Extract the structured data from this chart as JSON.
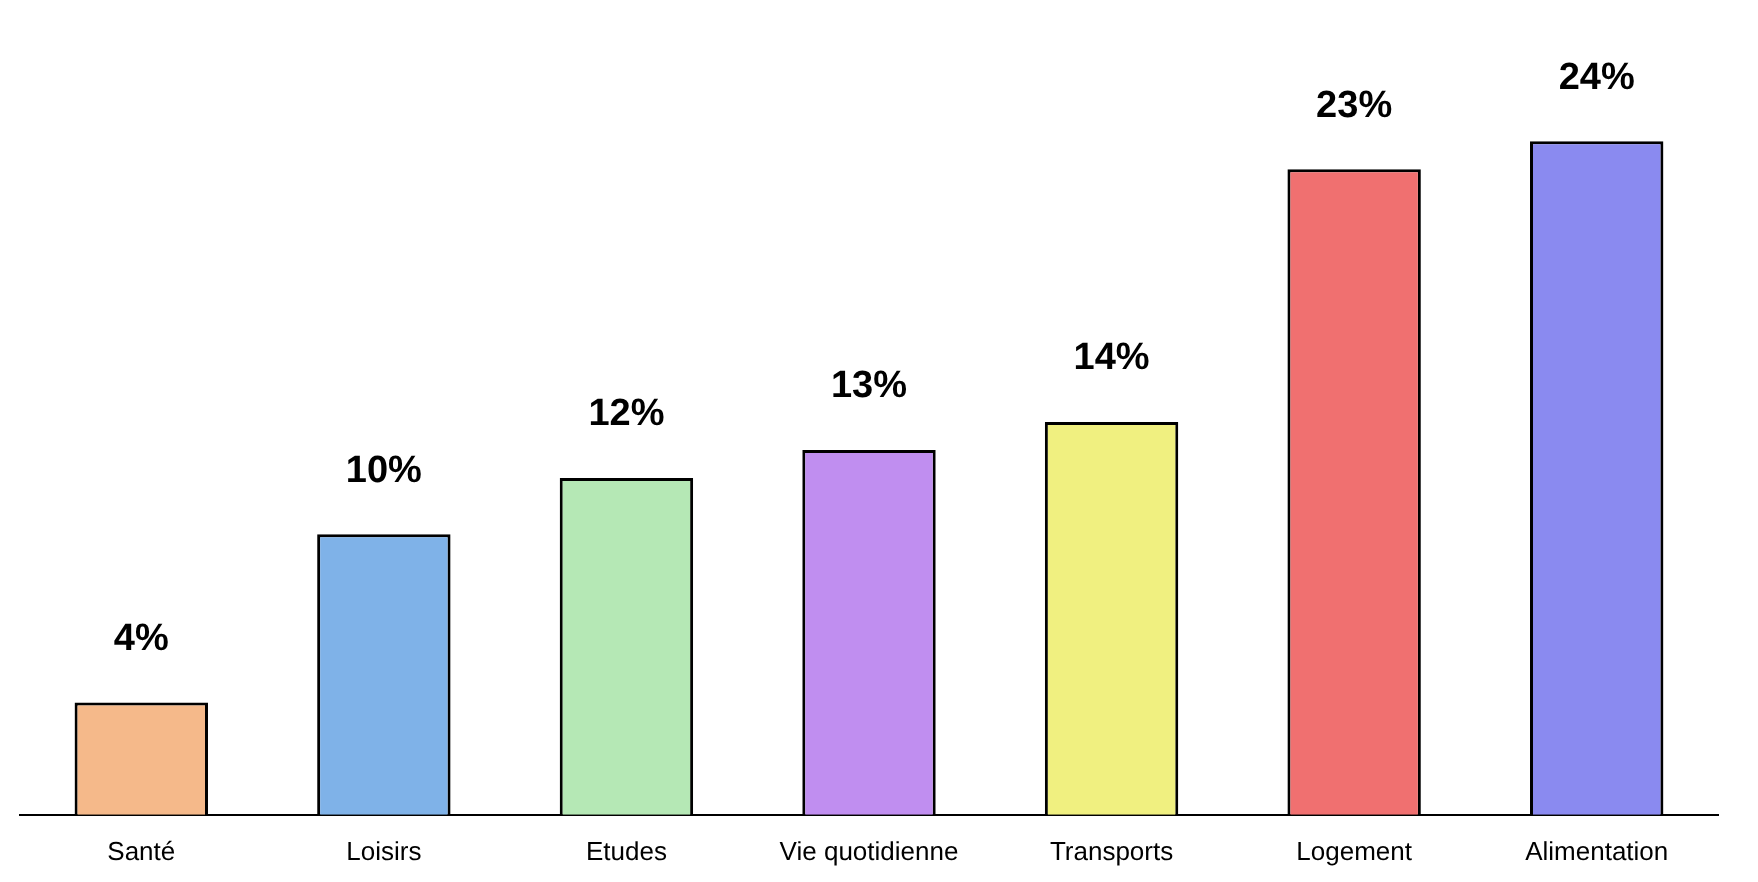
{
  "chart_data": {
    "type": "bar",
    "categories": [
      "Santé",
      "Loisirs",
      "Etudes",
      "Vie quotidienne",
      "Transports",
      "Logement",
      "Alimentation"
    ],
    "values": [
      4,
      10,
      12,
      13,
      14,
      23,
      24
    ],
    "value_labels": [
      "4%",
      "10%",
      "12%",
      "13%",
      "14%",
      "23%",
      "24%"
    ],
    "colors": [
      "#f5b98a",
      "#7fb2e8",
      "#b5e8b5",
      "#c08ef0",
      "#f0f080",
      "#f07070",
      "#8a8af0"
    ],
    "grid": false,
    "legend": false
  }
}
